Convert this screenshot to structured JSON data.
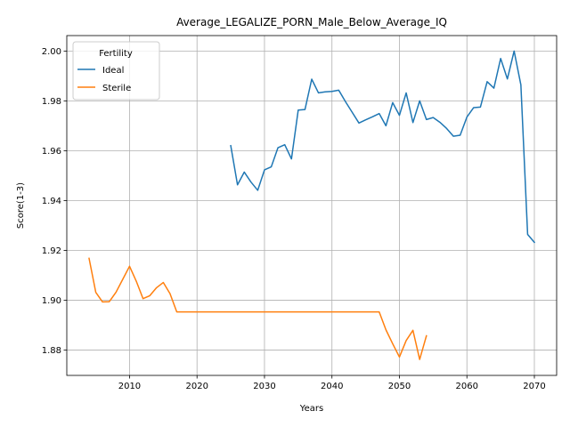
{
  "chart_data": {
    "type": "line",
    "title": "Average_LEGALIZE_PORN_Male_Below_Average_IQ",
    "xlabel": "Years",
    "ylabel": "Score(1-3)",
    "xlim": [
      2000.7,
      2073.3
    ],
    "ylim": [
      1.8698,
      2.0062
    ],
    "xticks": [
      2010,
      2020,
      2030,
      2040,
      2050,
      2060,
      2070
    ],
    "yticks": [
      1.88,
      1.9,
      1.92,
      1.94,
      1.96,
      1.98,
      2.0
    ],
    "ytick_labels": [
      "1.88",
      "1.90",
      "1.92",
      "1.94",
      "1.96",
      "1.98",
      "2.00"
    ],
    "grid": true,
    "legend": {
      "title": "Fertility",
      "placement": "top-left"
    },
    "series": [
      {
        "name": "Ideal",
        "color": "#1f77b4",
        "x": [
          2025,
          2026,
          2027,
          2028,
          2029,
          2030,
          2031,
          2032,
          2033,
          2034,
          2035,
          2036,
          2037,
          2038,
          2039,
          2040,
          2041,
          2042,
          2043,
          2044,
          2045,
          2046,
          2047,
          2048,
          2049,
          2050,
          2051,
          2052,
          2053,
          2054,
          2055,
          2056,
          2057,
          2058,
          2059,
          2060,
          2061,
          2062,
          2063,
          2064,
          2065,
          2066,
          2067,
          2068,
          2069,
          2070
        ],
        "y": [
          1.962,
          1.9463,
          1.9514,
          1.9474,
          1.9441,
          1.9523,
          1.9535,
          1.9612,
          1.9624,
          1.9567,
          1.9763,
          1.9765,
          1.9887,
          1.9832,
          1.9836,
          1.9838,
          1.9843,
          1.9797,
          1.9754,
          1.9711,
          1.9724,
          1.9736,
          1.9749,
          1.97,
          1.9793,
          1.9742,
          1.9832,
          1.9713,
          1.98,
          1.9725,
          1.9733,
          1.9714,
          1.9689,
          1.9658,
          1.9662,
          1.9735,
          1.9773,
          1.9775,
          1.9877,
          1.9851,
          1.997,
          1.9888,
          2.0,
          1.9864,
          1.9264,
          1.9232
        ]
      },
      {
        "name": "Sterile",
        "color": "#ff7f0e",
        "x": [
          2004,
          2005,
          2006,
          2007,
          2008,
          2009,
          2010,
          2011,
          2012,
          2013,
          2014,
          2015,
          2016,
          2017,
          2018,
          2019,
          2020,
          2021,
          2022,
          2023,
          2024,
          2025,
          2026,
          2027,
          2028,
          2029,
          2030,
          2031,
          2032,
          2033,
          2034,
          2035,
          2036,
          2037,
          2038,
          2039,
          2040,
          2041,
          2042,
          2043,
          2044,
          2045,
          2046,
          2047,
          2048,
          2049,
          2050,
          2051,
          2052,
          2053,
          2054
        ],
        "y": [
          1.9168,
          1.9031,
          1.8993,
          1.8994,
          1.9032,
          1.9084,
          1.9136,
          1.9076,
          1.9006,
          1.9018,
          1.905,
          1.9071,
          1.9026,
          1.8953,
          1.8953,
          1.8953,
          1.8953,
          1.8953,
          1.8953,
          1.8953,
          1.8953,
          1.8953,
          1.8953,
          1.8953,
          1.8953,
          1.8953,
          1.8953,
          1.8953,
          1.8953,
          1.8953,
          1.8953,
          1.8953,
          1.8953,
          1.8953,
          1.8953,
          1.8953,
          1.8953,
          1.8953,
          1.8953,
          1.8953,
          1.8953,
          1.8953,
          1.8953,
          1.8953,
          1.8881,
          1.8825,
          1.8772,
          1.8838,
          1.8879,
          1.8762,
          1.8857
        ]
      }
    ]
  }
}
